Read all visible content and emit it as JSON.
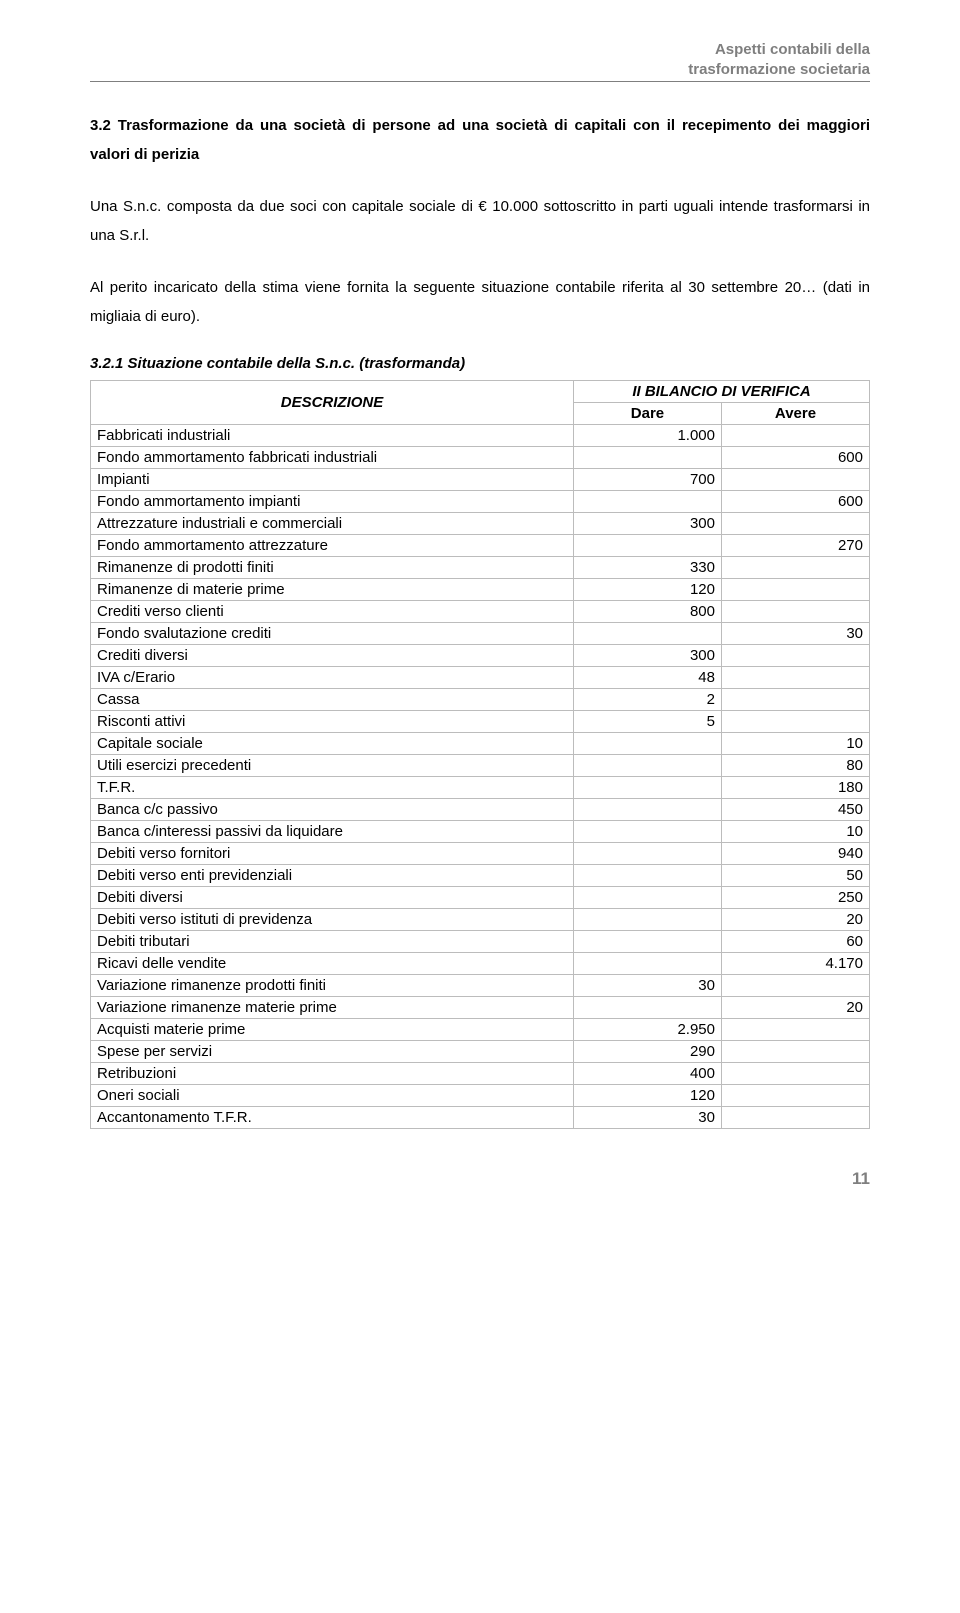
{
  "header": {
    "line1": "Aspetti contabili della",
    "line2": "trasformazione societaria"
  },
  "section_title": "3.2 Trasformazione da una società di persone ad una società di capitali con il recepimento dei maggiori valori di perizia",
  "p1": "Una S.n.c. composta da due soci con capitale sociale di € 10.000 sottoscritto in parti uguali intende trasformarsi in una S.r.l.",
  "p2": "Al perito incaricato della stima viene fornita la seguente situazione contabile riferita al 30 settembre 20… (dati in migliaia di euro).",
  "table_title": "3.2.1 Situazione contabile della S.n.c. (trasformanda)",
  "table": {
    "columns": {
      "desc": "DESCRIZIONE",
      "super": "II BILANCIO DI VERIFICA",
      "dare": "Dare",
      "avere": "Avere"
    },
    "rows": [
      {
        "desc": "Fabbricati industriali",
        "dare": "1.000",
        "avere": ""
      },
      {
        "desc": "Fondo ammortamento fabbricati industriali",
        "dare": "",
        "avere": "600"
      },
      {
        "desc": "Impianti",
        "dare": "700",
        "avere": ""
      },
      {
        "desc": "Fondo ammortamento impianti",
        "dare": "",
        "avere": "600"
      },
      {
        "desc": "Attrezzature industriali e commerciali",
        "dare": "300",
        "avere": ""
      },
      {
        "desc": "Fondo ammortamento attrezzature",
        "dare": "",
        "avere": "270"
      },
      {
        "desc": "Rimanenze di prodotti finiti",
        "dare": "330",
        "avere": ""
      },
      {
        "desc": "Rimanenze di materie prime",
        "dare": "120",
        "avere": ""
      },
      {
        "desc": "Crediti verso clienti",
        "dare": "800",
        "avere": ""
      },
      {
        "desc": "Fondo svalutazione crediti",
        "dare": "",
        "avere": "30"
      },
      {
        "desc": "Crediti diversi",
        "dare": "300",
        "avere": ""
      },
      {
        "desc": "IVA c/Erario",
        "dare": "48",
        "avere": ""
      },
      {
        "desc": "Cassa",
        "dare": "2",
        "avere": ""
      },
      {
        "desc": "Risconti attivi",
        "dare": "5",
        "avere": ""
      },
      {
        "desc": "Capitale sociale",
        "dare": "",
        "avere": "10"
      },
      {
        "desc": "Utili esercizi precedenti",
        "dare": "",
        "avere": "80"
      },
      {
        "desc": "T.F.R.",
        "dare": "",
        "avere": "180"
      },
      {
        "desc": "Banca c/c passivo",
        "dare": "",
        "avere": "450"
      },
      {
        "desc": "Banca c/interessi passivi da liquidare",
        "dare": "",
        "avere": "10"
      },
      {
        "desc": "Debiti verso fornitori",
        "dare": "",
        "avere": "940"
      },
      {
        "desc": "Debiti verso enti previdenziali",
        "dare": "",
        "avere": "50"
      },
      {
        "desc": "Debiti diversi",
        "dare": "",
        "avere": "250"
      },
      {
        "desc": "Debiti verso istituti di previdenza",
        "dare": "",
        "avere": "20"
      },
      {
        "desc": "Debiti tributari",
        "dare": "",
        "avere": "60"
      },
      {
        "desc": "Ricavi delle vendite",
        "dare": "",
        "avere": "4.170"
      },
      {
        "desc": "Variazione rimanenze prodotti finiti",
        "dare": "30",
        "avere": ""
      },
      {
        "desc": "Variazione rimanenze materie prime",
        "dare": "",
        "avere": "20"
      },
      {
        "desc": "Acquisti materie prime",
        "dare": "2.950",
        "avere": ""
      },
      {
        "desc": "Spese per servizi",
        "dare": "290",
        "avere": ""
      },
      {
        "desc": "Retribuzioni",
        "dare": "400",
        "avere": ""
      },
      {
        "desc": "Oneri sociali",
        "dare": "120",
        "avere": ""
      },
      {
        "desc": "Accantonamento T.F.R.",
        "dare": "30",
        "avere": ""
      }
    ]
  },
  "page_number": "11"
}
